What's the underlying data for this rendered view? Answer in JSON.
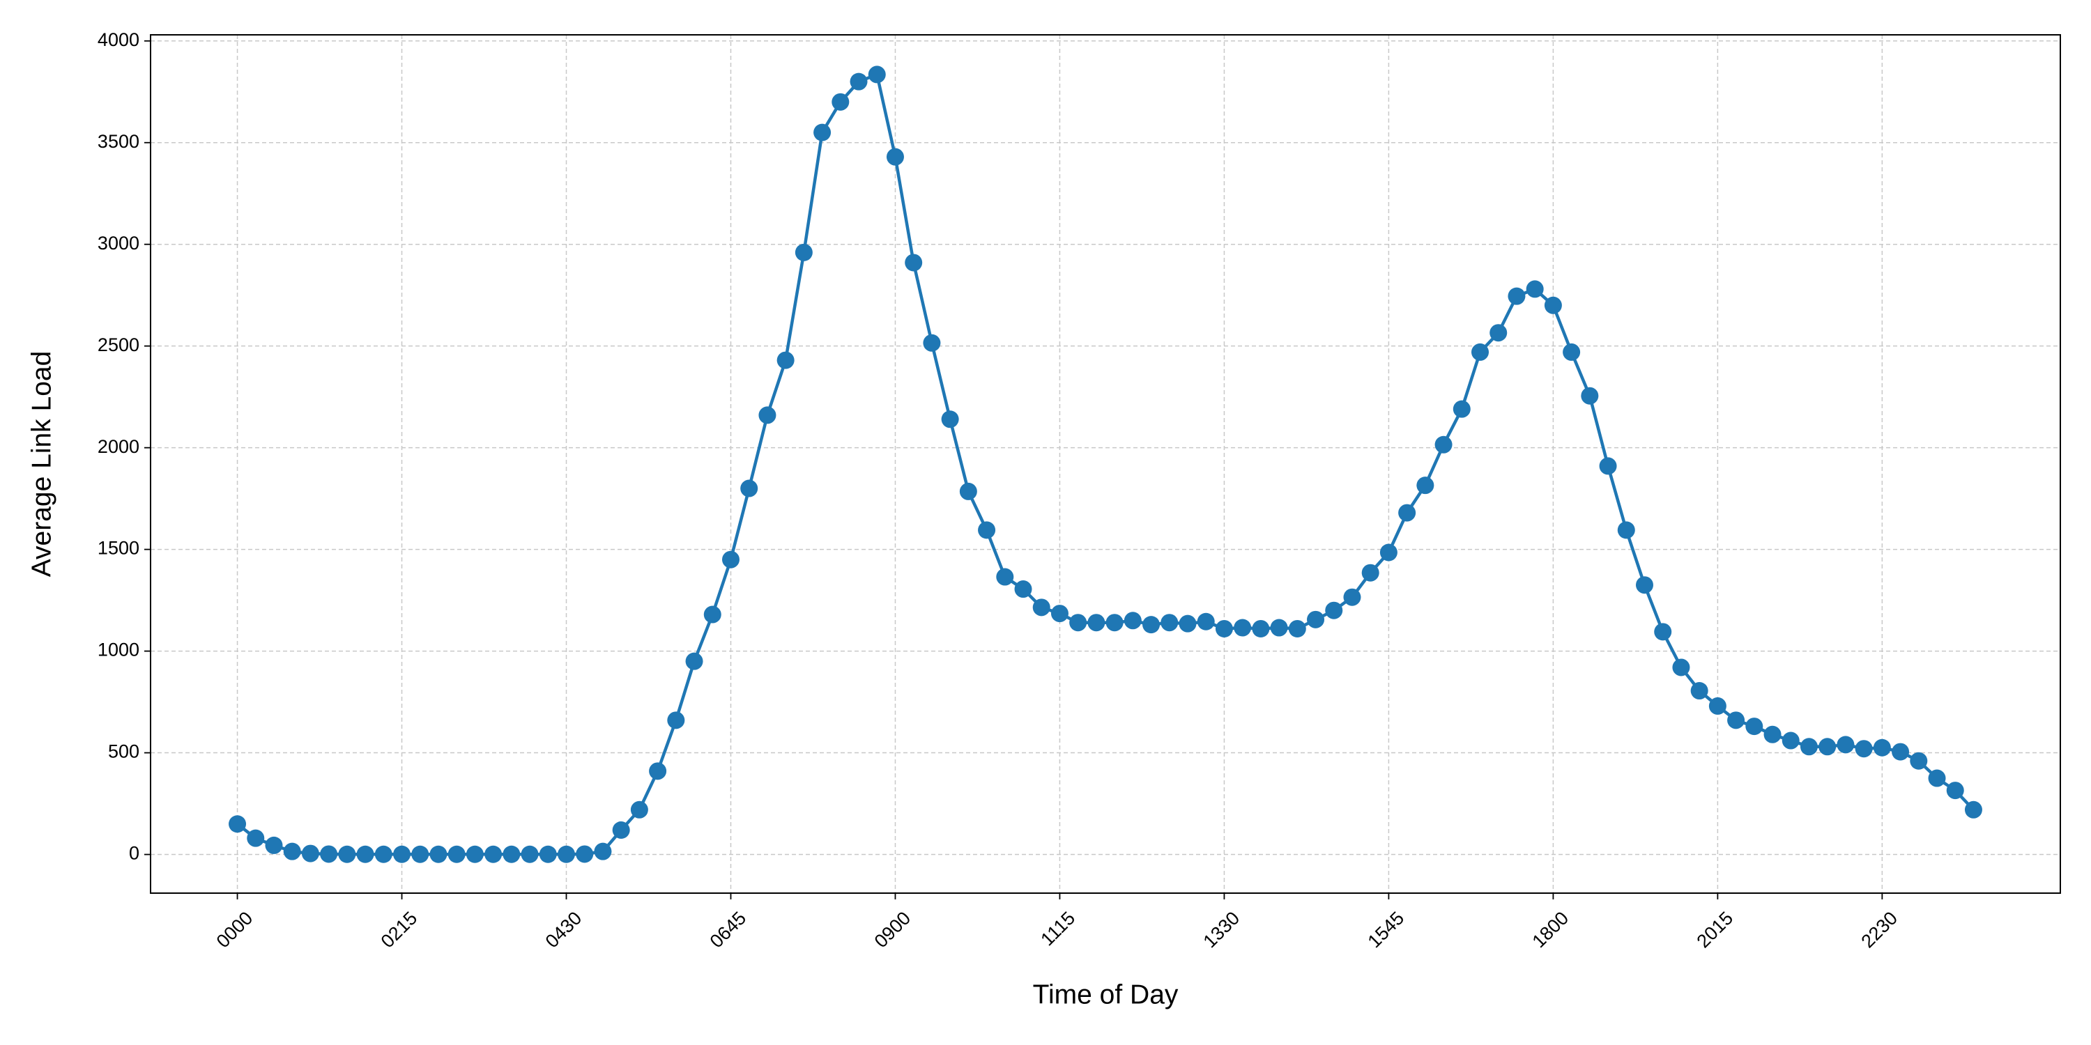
{
  "chart_data": {
    "type": "line",
    "x_label": "Time of Day",
    "y_label": "Average Link Load",
    "categories": [
      "0000",
      null,
      null,
      null,
      null,
      null,
      null,
      null,
      null,
      "0215",
      null,
      null,
      null,
      null,
      null,
      null,
      null,
      null,
      "0430",
      null,
      null,
      null,
      null,
      null,
      null,
      null,
      null,
      "0645",
      null,
      null,
      null,
      null,
      null,
      null,
      null,
      null,
      "0900",
      null,
      null,
      null,
      null,
      null,
      null,
      null,
      null,
      "1115",
      null,
      null,
      null,
      null,
      null,
      null,
      null,
      null,
      "1330",
      null,
      null,
      null,
      null,
      null,
      null,
      null,
      null,
      "1545",
      null,
      null,
      null,
      null,
      null,
      null,
      null,
      null,
      "1800",
      null,
      null,
      null,
      null,
      null,
      null,
      null,
      null,
      "2015",
      null,
      null,
      null,
      null,
      null,
      null,
      null,
      null,
      "2230",
      null,
      null,
      null,
      null,
      null
    ],
    "values": [
      150,
      80,
      45,
      15,
      5,
      2,
      1,
      1,
      1,
      1,
      1,
      1,
      1,
      1,
      1,
      1,
      1,
      1,
      1,
      2,
      15,
      120,
      220,
      410,
      660,
      950,
      1180,
      1450,
      1800,
      2160,
      2430,
      2960,
      3550,
      3700,
      3800,
      3835,
      3430,
      2910,
      2515,
      2140,
      1785,
      1595,
      1365,
      1305,
      1215,
      1185,
      1140,
      1140,
      1140,
      1150,
      1130,
      1140,
      1135,
      1145,
      1110,
      1115,
      1110,
      1115,
      1110,
      1155,
      1200,
      1265,
      1385,
      1485,
      1680,
      1815,
      2015,
      2190,
      2470,
      2565,
      2745,
      2780,
      2700,
      2470,
      2255,
      1910,
      1595,
      1325,
      1095,
      920,
      805,
      730,
      660,
      630,
      590,
      560,
      530,
      530,
      540,
      520,
      525,
      505,
      460,
      375,
      315,
      220
    ],
    "color": "#1f77b4",
    "ylim": [
      -190,
      4030
    ],
    "yticks": [
      0,
      500,
      1000,
      1500,
      2000,
      2500,
      3000,
      3500,
      4000
    ],
    "grid": true
  }
}
